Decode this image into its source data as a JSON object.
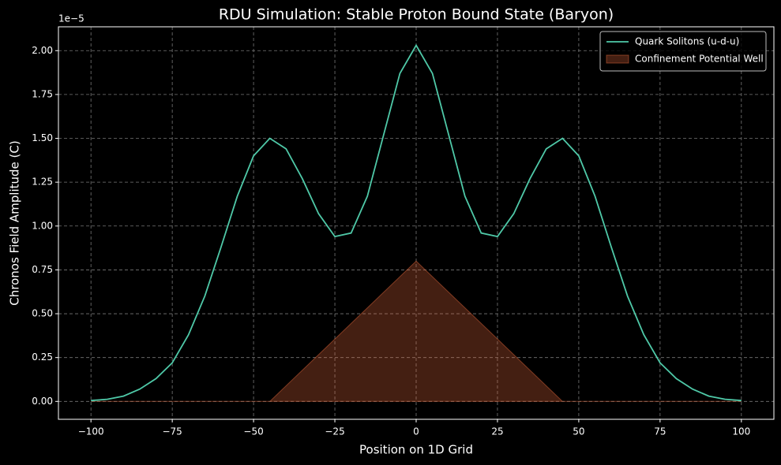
{
  "chart_data": {
    "type": "line",
    "title": "RDU Simulation: Stable Proton Bound State (Baryon)",
    "xlabel": "Position on 1D Grid",
    "ylabel": "Chronos Field Amplitude (C)",
    "y_offset_label": "1e−5",
    "xlim": [
      -110,
      110
    ],
    "ylim": [
      -0.102,
      2.136
    ],
    "xticks": [
      {
        "value": -100,
        "label": "−100"
      },
      {
        "value": -75,
        "label": "−75"
      },
      {
        "value": -50,
        "label": "−50"
      },
      {
        "value": -25,
        "label": "−25"
      },
      0,
      25,
      50,
      75,
      100
    ],
    "yticks": [
      {
        "value": 0,
        "label": "0.00"
      },
      {
        "value": 0.25,
        "label": "0.25"
      },
      {
        "value": 0.5,
        "label": "0.50"
      },
      {
        "value": 0.75,
        "label": "0.75"
      },
      {
        "value": 1,
        "label": "1.00"
      },
      {
        "value": 1.25,
        "label": "1.25"
      },
      {
        "value": 1.5,
        "label": "1.50"
      },
      {
        "value": 1.75,
        "label": "1.75"
      },
      {
        "value": 2,
        "label": "2.00"
      }
    ],
    "grid": true,
    "legend": "upper right",
    "series": [
      {
        "name": "Quark Solitons (u-d-u)",
        "color": "#4fc9a8",
        "kind": "line",
        "x": [
          -100,
          -95,
          -90,
          -85,
          -80,
          -75,
          -70,
          -65,
          -60,
          -55,
          -50,
          -45,
          -40,
          -35,
          -30,
          -25,
          -20,
          -15,
          -10,
          -5,
          0,
          5,
          10,
          15,
          20,
          25,
          30,
          35,
          40,
          45,
          50,
          55,
          60,
          65,
          70,
          75,
          80,
          85,
          90,
          95,
          100
        ],
        "values": [
          0.005,
          0.012,
          0.03,
          0.07,
          0.13,
          0.22,
          0.38,
          0.6,
          0.88,
          1.17,
          1.4,
          1.5,
          1.44,
          1.27,
          1.07,
          0.94,
          0.96,
          1.17,
          1.52,
          1.87,
          2.03,
          1.87,
          1.52,
          1.17,
          0.96,
          0.94,
          1.07,
          1.27,
          1.44,
          1.5,
          1.4,
          1.17,
          0.88,
          0.6,
          0.38,
          0.22,
          0.13,
          0.07,
          0.03,
          0.012,
          0.005
        ]
      },
      {
        "name": "Confinement Potential Well",
        "color": "#e0663a",
        "kind": "area",
        "x": [
          -100,
          -45,
          0,
          45,
          100
        ],
        "values": [
          0,
          0,
          0.8,
          0,
          0
        ]
      }
    ]
  }
}
